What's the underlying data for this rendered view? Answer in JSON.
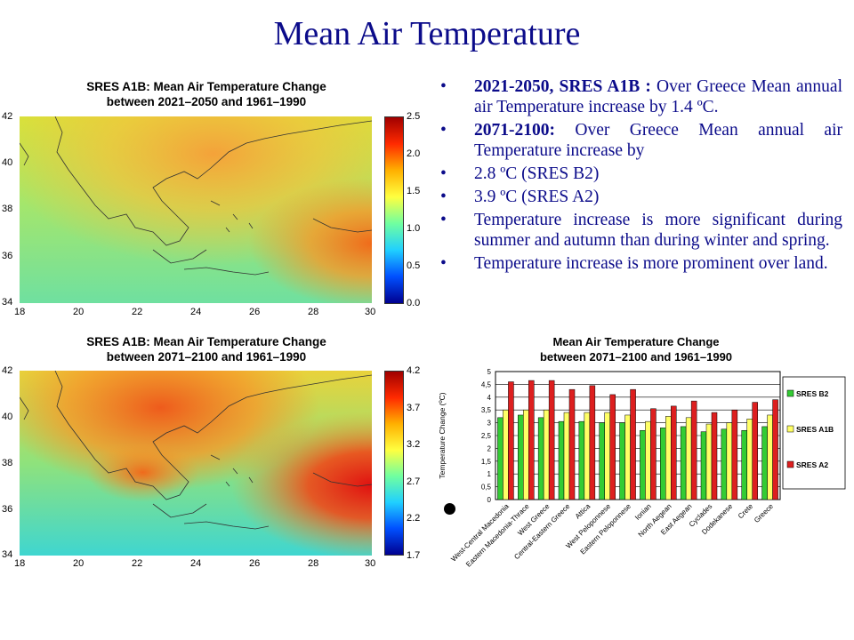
{
  "slide": {
    "title": "Mean Air Temperature"
  },
  "maps": [
    {
      "title_line1": "SRES A1B:  Mean Air Temperature Change",
      "title_line2": "between 2021–2050  and 1961–1990",
      "colorbar_ticks": [
        "2.5",
        "2.0",
        "1.5",
        "1.0",
        "0.5",
        "0.0"
      ],
      "lat_ticks": [
        "42",
        "40",
        "38",
        "36",
        "34"
      ],
      "lon_ticks": [
        "18",
        "20",
        "22",
        "24",
        "26",
        "28",
        "30"
      ]
    },
    {
      "title_line1": "SRES A1B:  Mean Air Temperature Change",
      "title_line2": "between 2071–2100  and 1961–1990",
      "colorbar_ticks": [
        "4.2",
        "3.7",
        "3.2",
        "2.7",
        "2.2",
        "1.7"
      ],
      "lat_ticks": [
        "42",
        "40",
        "38",
        "36",
        "34"
      ],
      "lon_ticks": [
        "18",
        "20",
        "22",
        "24",
        "26",
        "28",
        "30"
      ]
    }
  ],
  "bullets": [
    {
      "bold": "2021-2050, SRES A1B :",
      "text": " Over Greece Mean annual air Temperature increase by 1.4 ºC."
    },
    {
      "bold": "2071-2100:",
      "text": " Over Greece Mean annual air Temperature increase by"
    },
    {
      "bold": "",
      "text": "2.8 ºC (SRES B2)"
    },
    {
      "bold": "",
      "text": "3.9 ºC (SRES A2)"
    },
    {
      "bold": "",
      "text": "Temperature increase is more significant during summer and autumn than during winter and spring."
    },
    {
      "bold": "",
      "text": "Temperature increase is more prominent over land."
    }
  ],
  "bullet_symbol": "•",
  "chart_data": {
    "type": "bar",
    "title": "Mean Air Temperature Change between 2071–2100 and 1961–1990",
    "title_line1": "Mean Air Temperature Change",
    "title_line2": "between 2071–2100 and 1961–1990",
    "ylabel": "Temperature Change (ºC)",
    "ylim": [
      0,
      5
    ],
    "yticks": [
      "0",
      "0,5",
      "1",
      "1,5",
      "2",
      "2,5",
      "3",
      "3,5",
      "4",
      "4,5",
      "5"
    ],
    "categories": [
      "West-Central Macedonia",
      "Eastern Macedonia-Thrace",
      "West Greece",
      "Central-Eastern Greece",
      "Attica",
      "West Peloponnese",
      "Eastern Peloponnese",
      "Ionian",
      "North Aegean",
      "East Aegean",
      "Cyclades",
      "Dodekanese",
      "Crete",
      "Greece"
    ],
    "series": [
      {
        "name": "SRES B2",
        "color": "#33cc33",
        "values": [
          3.2,
          3.3,
          3.2,
          3.05,
          3.05,
          3.0,
          3.0,
          2.7,
          2.8,
          2.85,
          2.65,
          2.75,
          2.7,
          2.85
        ]
      },
      {
        "name": "SRES A1B",
        "color": "#ffff66",
        "values": [
          3.5,
          3.5,
          3.5,
          3.4,
          3.4,
          3.4,
          3.3,
          3.05,
          3.25,
          3.2,
          2.95,
          3.0,
          3.15,
          3.3
        ]
      },
      {
        "name": "SRES A2",
        "color": "#dd1f1f",
        "values": [
          4.6,
          4.65,
          4.65,
          4.3,
          4.45,
          4.1,
          4.3,
          3.55,
          3.65,
          3.85,
          3.4,
          3.5,
          3.8,
          3.9
        ]
      }
    ],
    "legend": "right",
    "grid": true
  }
}
